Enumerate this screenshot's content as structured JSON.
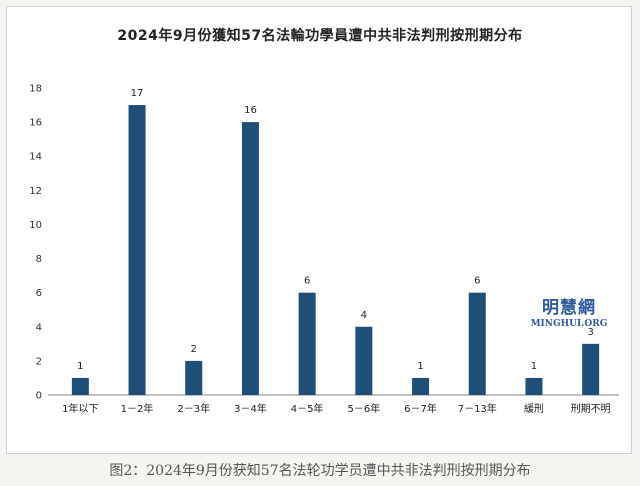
{
  "chart_data": {
    "type": "bar",
    "title": "2024年9月份獲知57名法輪功學員遭中共非法判刑按刑期分布",
    "categories": [
      "1年以下",
      "1－2年",
      "2－3年",
      "3－4年",
      "4－5年",
      "5－6年",
      "6－7年",
      "7－13年",
      "緩刑",
      "刑期不明"
    ],
    "values": [
      1,
      17,
      2,
      16,
      6,
      4,
      1,
      6,
      1,
      3
    ],
    "ylim": [
      0,
      18
    ],
    "yticks": [
      0,
      2,
      4,
      6,
      8,
      10,
      12,
      14,
      16,
      18
    ],
    "xlabel": "",
    "ylabel": "",
    "bar_color": "#1f4e79",
    "grid": false,
    "data_labels": true
  },
  "watermark": {
    "name_cn": "明慧網",
    "name_en": "MINGHUI.ORG"
  },
  "caption": "图2：2024年9月份获知57名法轮功学员遭中共非法判刑按刑期分布"
}
